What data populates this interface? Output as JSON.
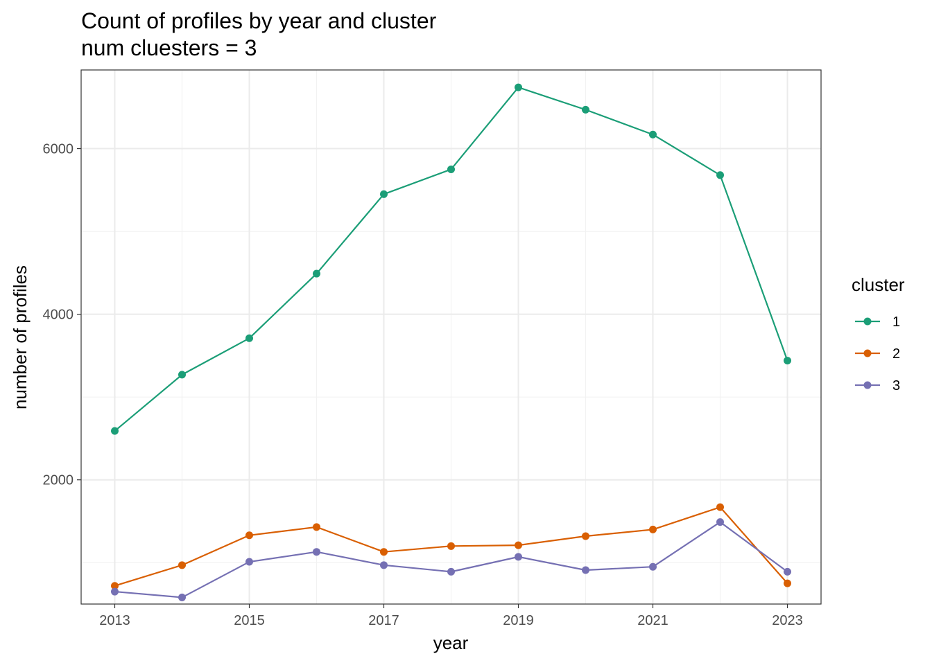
{
  "chart_data": {
    "type": "line",
    "title": "Count of profiles by year and cluster",
    "subtitle": "num cluesters = 3",
    "xlabel": "year",
    "ylabel": "number of profiles",
    "x": [
      2013,
      2014,
      2015,
      2016,
      2017,
      2018,
      2019,
      2020,
      2021,
      2022,
      2023
    ],
    "xlim": [
      2012.5,
      2023.5
    ],
    "ylim": [
      500,
      6950
    ],
    "x_ticks": [
      2013,
      2015,
      2017,
      2019,
      2021,
      2023
    ],
    "y_ticks": [
      2000,
      4000,
      6000
    ],
    "grid": true,
    "legend": {
      "title": "cluster",
      "position": "right"
    },
    "series": [
      {
        "name": "1",
        "color": "#1b9e77",
        "values": [
          2590,
          3270,
          3710,
          4490,
          5450,
          5750,
          6740,
          6470,
          6170,
          5680,
          3440
        ]
      },
      {
        "name": "2",
        "color": "#d95f02",
        "values": [
          720,
          970,
          1330,
          1430,
          1130,
          1200,
          1210,
          1320,
          1400,
          1670,
          750
        ]
      },
      {
        "name": "3",
        "color": "#7570b3",
        "values": [
          650,
          580,
          1010,
          1130,
          970,
          890,
          1070,
          910,
          950,
          1490,
          890
        ]
      }
    ]
  }
}
